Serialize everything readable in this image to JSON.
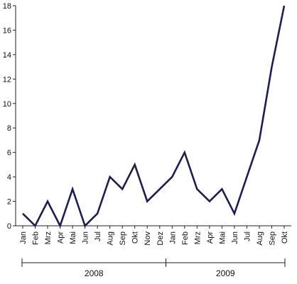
{
  "chart_data": {
    "type": "line",
    "title": "",
    "xlabel": "",
    "ylabel": "",
    "ylim": [
      0,
      18
    ],
    "yticks": [
      0,
      2,
      4,
      6,
      8,
      10,
      12,
      14,
      16,
      18
    ],
    "grid": false,
    "legend": "none",
    "x": [
      "Jan",
      "Feb",
      "Mrz",
      "Apr",
      "Mai",
      "Jun",
      "Jul",
      "Aug",
      "Sep",
      "Okt",
      "Nov",
      "Dez",
      "Jan",
      "Feb",
      "Mrz",
      "Apr",
      "Mai",
      "Jun",
      "Jul",
      "Aug",
      "Sep",
      "Okt"
    ],
    "series": [
      {
        "values": [
          1,
          0,
          2,
          0,
          3,
          0,
          1,
          4,
          3,
          5,
          2,
          null,
          4,
          6,
          3,
          2,
          3,
          1,
          4,
          7,
          13,
          18
        ]
      }
    ],
    "groups": [
      {
        "label": "2008",
        "start": 0,
        "end": 11
      },
      {
        "label": "2009",
        "start": 12,
        "end": 21
      }
    ],
    "line_color": "#1c1f4f"
  }
}
